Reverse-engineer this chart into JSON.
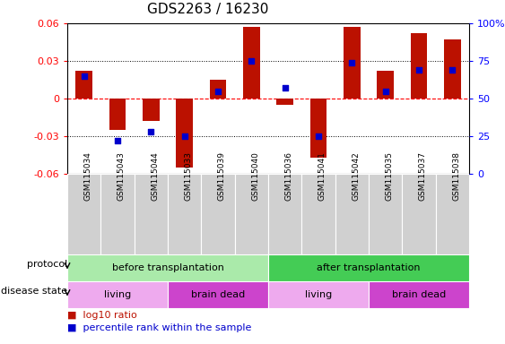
{
  "title": "GDS2263 / 16230",
  "samples": [
    "GSM115034",
    "GSM115043",
    "GSM115044",
    "GSM115033",
    "GSM115039",
    "GSM115040",
    "GSM115036",
    "GSM115041",
    "GSM115042",
    "GSM115035",
    "GSM115037",
    "GSM115038"
  ],
  "log10_ratio": [
    0.022,
    -0.025,
    -0.018,
    -0.055,
    0.015,
    0.057,
    -0.005,
    -0.047,
    0.057,
    0.022,
    0.052,
    0.047
  ],
  "percentile_rank": [
    0.65,
    0.22,
    0.28,
    0.25,
    0.55,
    0.75,
    0.57,
    0.25,
    0.74,
    0.55,
    0.69,
    0.69
  ],
  "bar_color": "#bb1100",
  "dot_color": "#0000cc",
  "ymin": -0.06,
  "ymax": 0.06,
  "yticks_left": [
    -0.06,
    -0.03,
    0.0,
    0.03,
    0.06
  ],
  "ytick_labels_left": [
    "-0.06",
    "-0.03",
    "0",
    "0.03",
    "0.06"
  ],
  "yticks_right_pct": [
    0,
    25,
    50,
    75,
    100
  ],
  "ytick_labels_right": [
    "0",
    "25",
    "50",
    "75",
    "100%"
  ],
  "protocol_groups": [
    {
      "label": "before transplantation",
      "xstart": 0,
      "xend": 5,
      "color": "#aaeaaa"
    },
    {
      "label": "after transplantation",
      "xstart": 6,
      "xend": 11,
      "color": "#44cc55"
    }
  ],
  "disease_groups": [
    {
      "label": "living",
      "xstart": 0,
      "xend": 2,
      "color": "#eeaaee"
    },
    {
      "label": "brain dead",
      "xstart": 3,
      "xend": 5,
      "color": "#cc44cc"
    },
    {
      "label": "living",
      "xstart": 6,
      "xend": 8,
      "color": "#eeaaee"
    },
    {
      "label": "brain dead",
      "xstart": 9,
      "xend": 11,
      "color": "#cc44cc"
    }
  ],
  "bar_width": 0.5,
  "dot_size": 18,
  "xtick_bg_color": "#d0d0d0",
  "left_label_color": "red",
  "right_label_color": "blue"
}
